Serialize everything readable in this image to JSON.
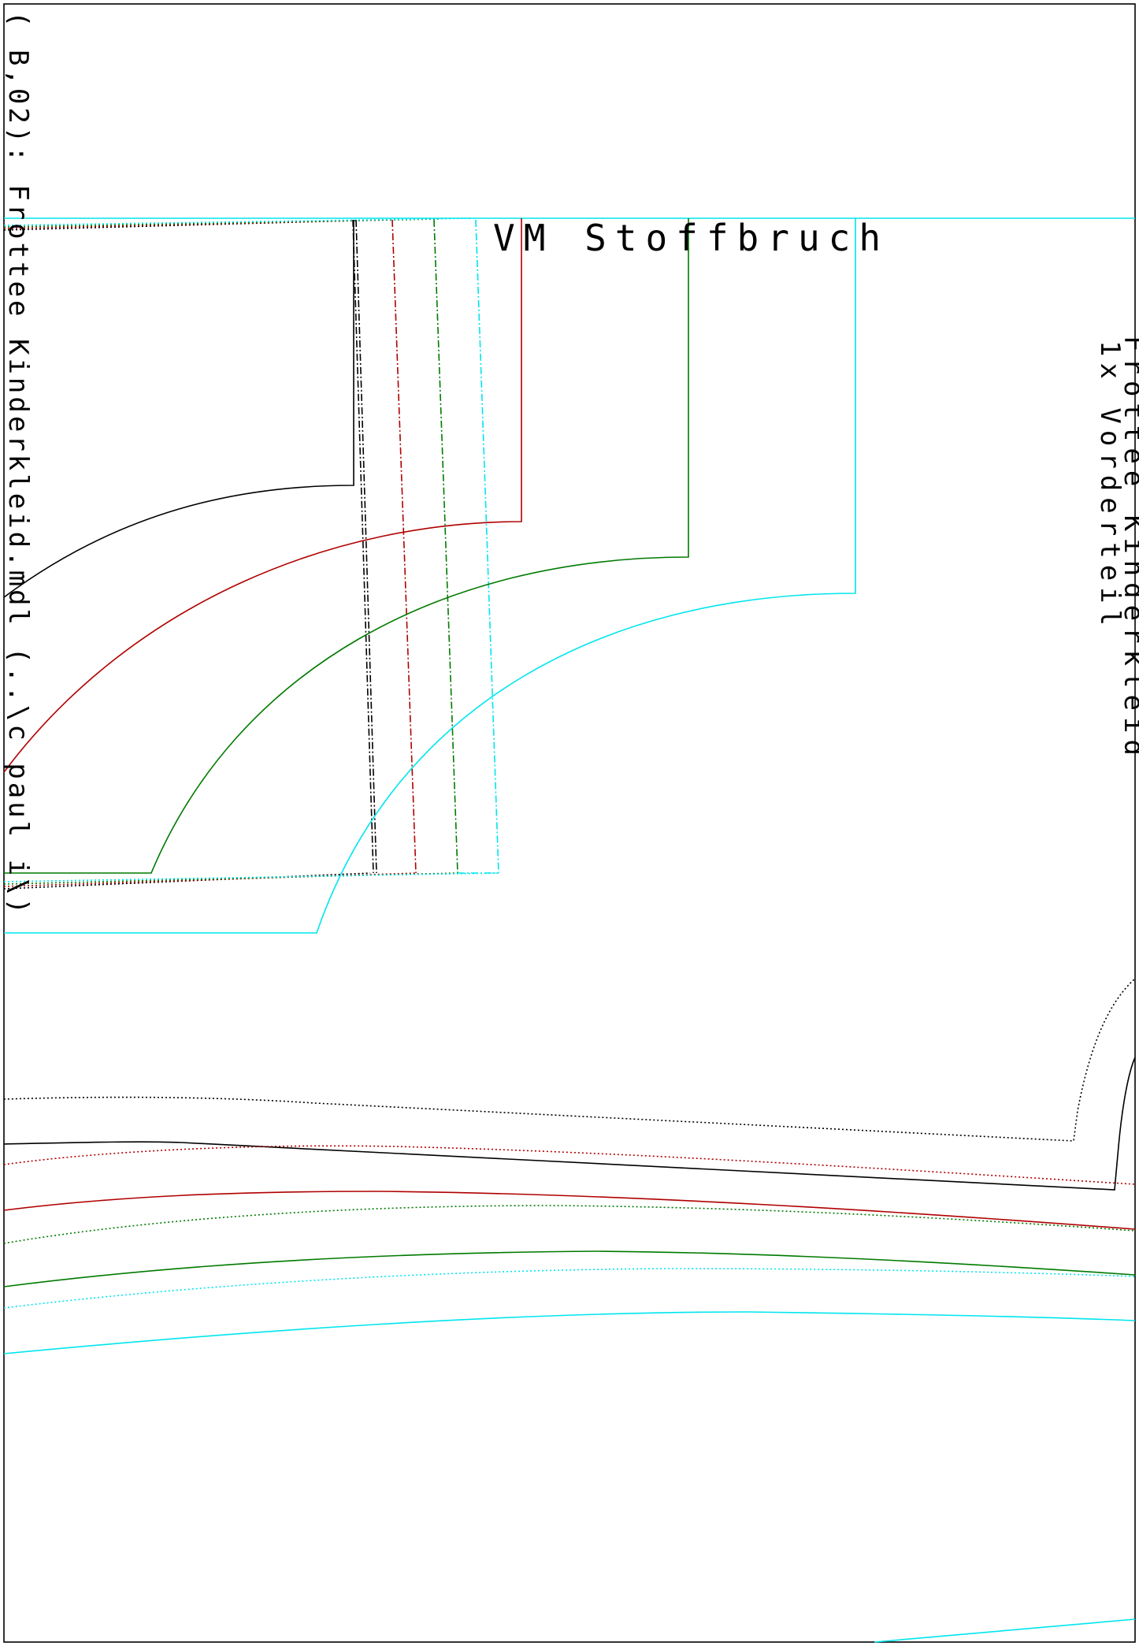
{
  "sheet": {
    "side_label": "( B,02): Frottee Kinderkleid.mdl (..\\c paul i\\)",
    "fold_label": "VM  Stoffbruch",
    "piece_label_1": "1x Vorderteil",
    "piece_label_2": "Frottee Kinderkleid"
  },
  "colors": {
    "size_1": "#000000",
    "size_2": "#b00000",
    "size_3": "#007a00",
    "size_4": "#00e5ee",
    "frame": "#000000"
  }
}
